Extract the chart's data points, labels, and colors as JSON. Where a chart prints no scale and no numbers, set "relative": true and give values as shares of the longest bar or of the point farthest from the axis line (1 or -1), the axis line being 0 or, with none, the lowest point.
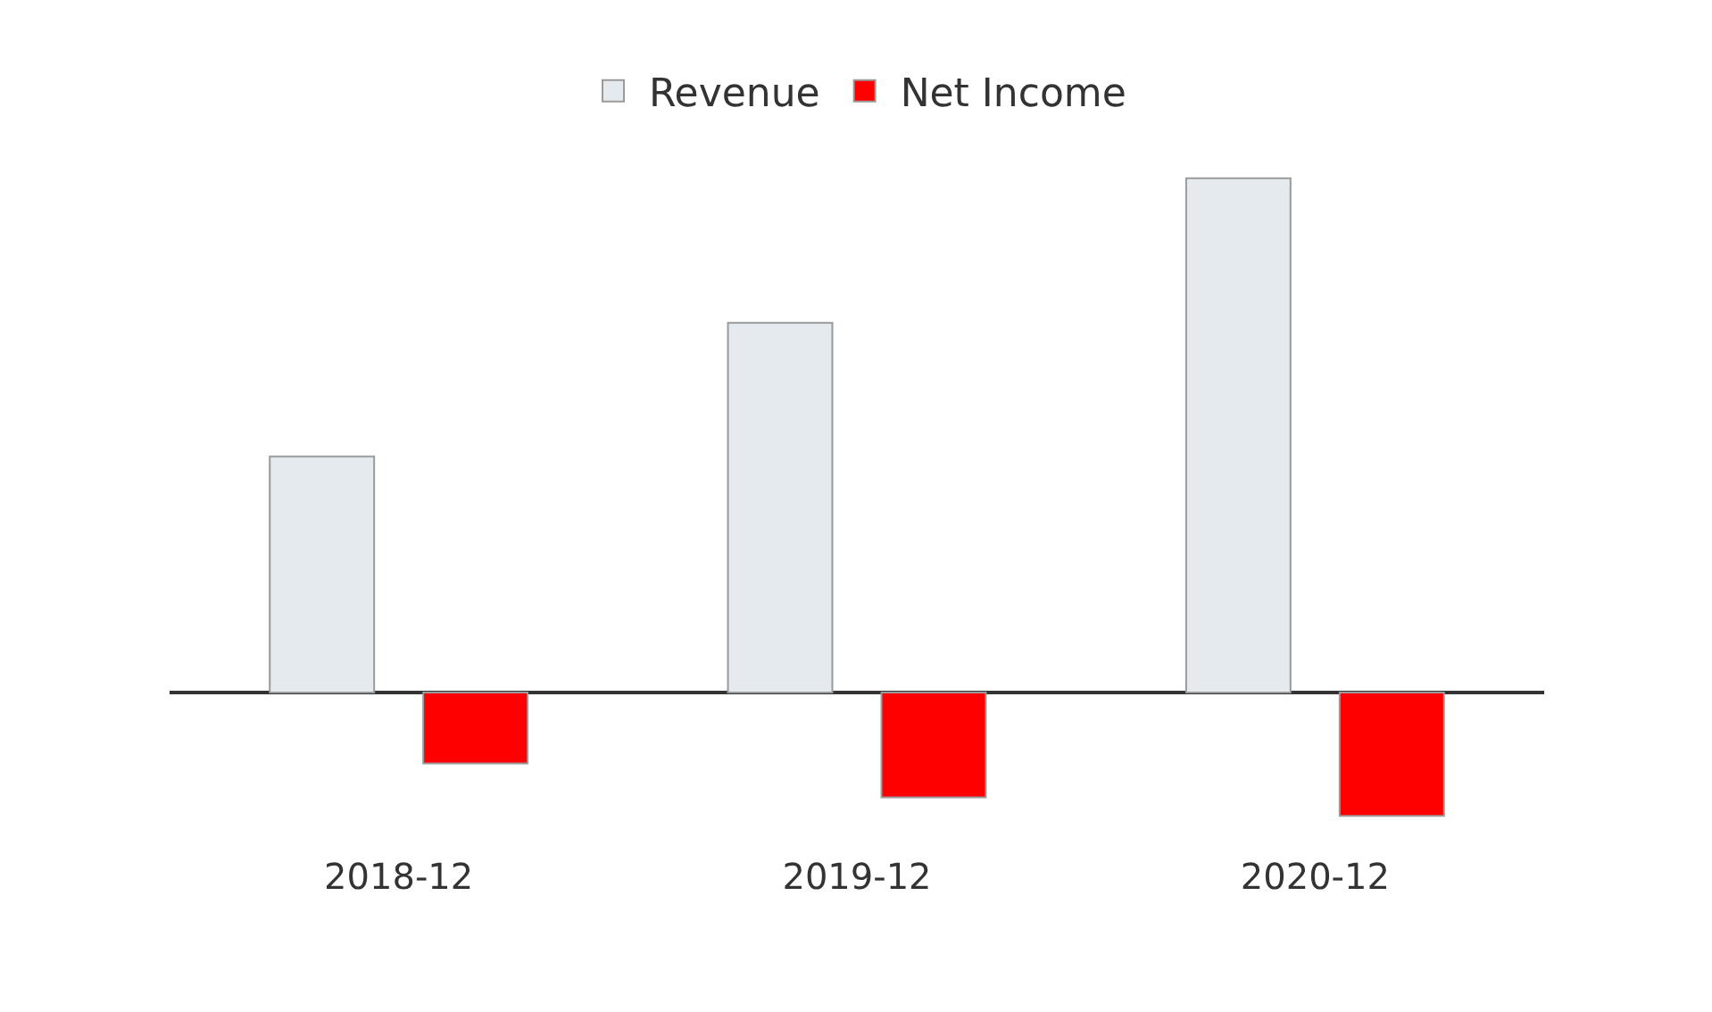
{
  "chart_data": {
    "type": "bar",
    "relative": true,
    "categories": [
      "2018-12",
      "2019-12",
      "2020-12"
    ],
    "series": [
      {
        "name": "Revenue",
        "color": "#e5eaef",
        "values": [
          0.459,
          0.719,
          1
        ]
      },
      {
        "name": "Net Income",
        "color": "#ff0000",
        "values": [
          -0.138,
          -0.204,
          -0.24
        ]
      }
    ],
    "legend": "top"
  }
}
